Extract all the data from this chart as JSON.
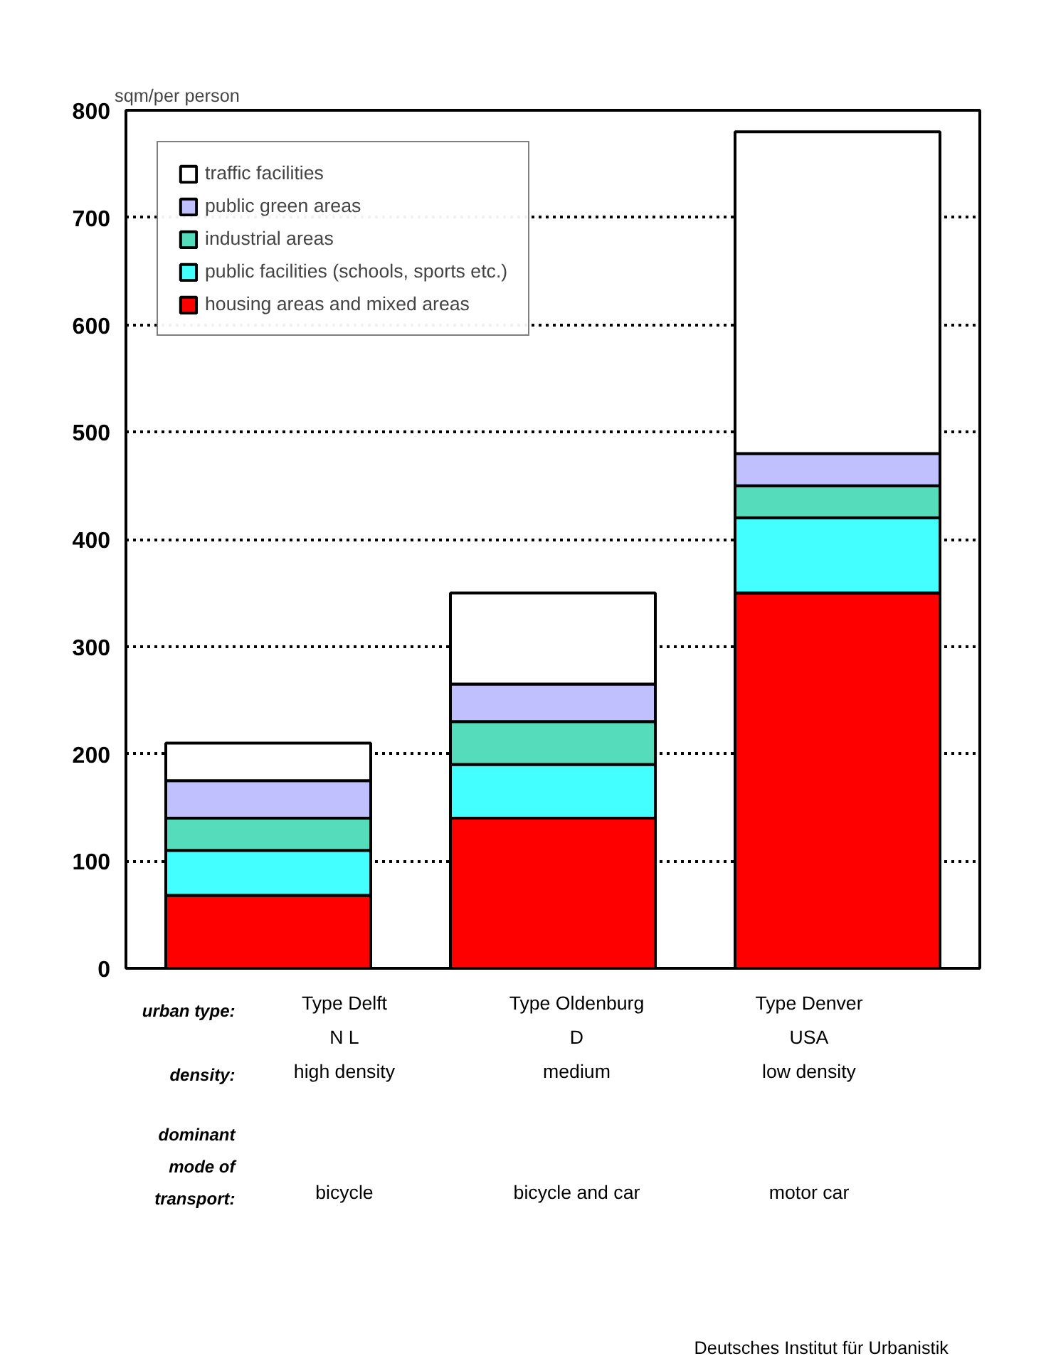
{
  "chart_data": {
    "type": "bar",
    "stacked": true,
    "ylabel": "sqm/per person",
    "categories": [
      "Type Delft\nN L\nhigh density",
      "Type Oldenburg\nD\nmedium",
      "Type Denver\nUSA\nlow density"
    ],
    "series": [
      {
        "name": "housing areas and mixed areas",
        "color": "#ff0000",
        "values": [
          68,
          140,
          350
        ]
      },
      {
        "name": "public facilities (schools, sports etc.)",
        "color": "#44ffff",
        "values": [
          42,
          50,
          70
        ]
      },
      {
        "name": "industrial areas",
        "color": "#55ddbb",
        "values": [
          30,
          40,
          30
        ]
      },
      {
        "name": "public green areas",
        "color": "#c0c0ff",
        "values": [
          35,
          35,
          30
        ]
      },
      {
        "name": "traffic facilities",
        "color": "#ffffff",
        "values": [
          35,
          85,
          300
        ]
      }
    ],
    "ylim": [
      0,
      800
    ],
    "yticks": [
      0,
      100,
      200,
      300,
      400,
      500,
      600,
      700,
      800
    ],
    "grid": "y",
    "legend": "top left",
    "annotations": [
      "urban type:",
      "density:",
      "dominant\nmode of\ntransport:",
      "bicycle",
      "bicycle and car",
      "motor car",
      "Deutsches Institut für Urbanistik"
    ]
  }
}
